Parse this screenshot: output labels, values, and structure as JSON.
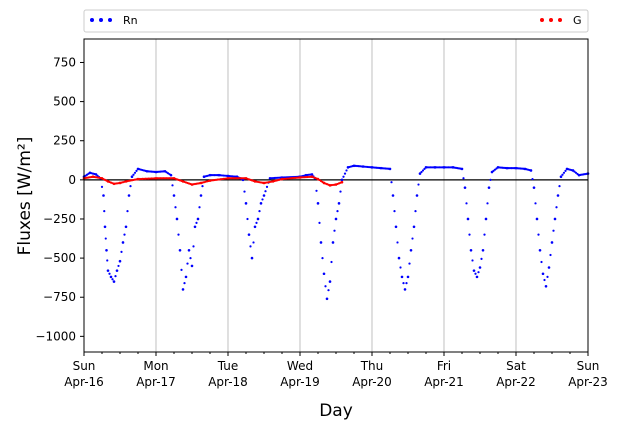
{
  "chart_data": {
    "type": "scatter",
    "xlabel": "Day",
    "ylabel": "Fluxes [W/m²]",
    "x_range": [
      "2017-04-16",
      "2017-04-23"
    ],
    "ylim": [
      -1100,
      900
    ],
    "y_ticks": [
      -1000,
      -750,
      -500,
      -250,
      0,
      250,
      500,
      750
    ],
    "x_ticks": [
      {
        "date": "2017-04-16",
        "day": "Sun",
        "date_label": "Apr-16"
      },
      {
        "date": "2017-04-17",
        "day": "Mon",
        "date_label": "Apr-17"
      },
      {
        "date": "2017-04-18",
        "day": "Tue",
        "date_label": "Apr-18"
      },
      {
        "date": "2017-04-19",
        "day": "Wed",
        "date_label": "Apr-19"
      },
      {
        "date": "2017-04-20",
        "day": "Thu",
        "date_label": "Apr-20"
      },
      {
        "date": "2017-04-21",
        "day": "Fri",
        "date_label": "Apr-21"
      },
      {
        "date": "2017-04-22",
        "day": "Sat",
        "date_label": "Apr-22"
      },
      {
        "date": "2017-04-23",
        "day": "Sun",
        "date_label": "Apr-23"
      }
    ],
    "grid": "vertical",
    "zero_line": true,
    "legend_placement": "top, above plot",
    "series": [
      {
        "name": "Rn",
        "color": "#0000ff",
        "points": [
          [
            "2017-04-16 00:00",
            20
          ],
          [
            "2017-04-16 02:00",
            45
          ],
          [
            "2017-04-16 04:00",
            35
          ],
          [
            "2017-04-16 05:30",
            10
          ],
          [
            "2017-04-16 06:30",
            -100
          ],
          [
            "2017-04-16 07:00",
            -300
          ],
          [
            "2017-04-16 07:30",
            -450
          ],
          [
            "2017-04-16 08:00",
            -580
          ],
          [
            "2017-04-16 09:00",
            -620
          ],
          [
            "2017-04-16 10:00",
            -650
          ],
          [
            "2017-04-16 11:00",
            -580
          ],
          [
            "2017-04-16 12:00",
            -520
          ],
          [
            "2017-04-16 13:00",
            -400
          ],
          [
            "2017-04-16 14:00",
            -300
          ],
          [
            "2017-04-16 15:00",
            -100
          ],
          [
            "2017-04-16 16:00",
            20
          ],
          [
            "2017-04-16 18:00",
            70
          ],
          [
            "2017-04-16 21:00",
            55
          ],
          [
            "2017-04-17 00:00",
            50
          ],
          [
            "2017-04-17 03:00",
            55
          ],
          [
            "2017-04-17 05:00",
            30
          ],
          [
            "2017-04-17 06:00",
            -100
          ],
          [
            "2017-04-17 07:00",
            -250
          ],
          [
            "2017-04-17 08:00",
            -450
          ],
          [
            "2017-04-17 09:00",
            -700
          ],
          [
            "2017-04-17 10:00",
            -620
          ],
          [
            "2017-04-17 11:00",
            -450
          ],
          [
            "2017-04-17 12:00",
            -550
          ],
          [
            "2017-04-17 13:00",
            -300
          ],
          [
            "2017-04-17 14:00",
            -250
          ],
          [
            "2017-04-17 15:00",
            -100
          ],
          [
            "2017-04-17 16:00",
            20
          ],
          [
            "2017-04-17 18:00",
            30
          ],
          [
            "2017-04-17 21:00",
            30
          ],
          [
            "2017-04-18 00:00",
            25
          ],
          [
            "2017-04-18 03:00",
            20
          ],
          [
            "2017-04-18 04:00",
            10
          ],
          [
            "2017-04-18 05:00",
            0
          ],
          [
            "2017-04-18 06:00",
            -150
          ],
          [
            "2017-04-18 07:00",
            -350
          ],
          [
            "2017-04-18 08:00",
            -500
          ],
          [
            "2017-04-18 09:00",
            -300
          ],
          [
            "2017-04-18 10:00",
            -250
          ],
          [
            "2017-04-18 11:00",
            -150
          ],
          [
            "2017-04-18 12:00",
            -100
          ],
          [
            "2017-04-18 14:00",
            10
          ],
          [
            "2017-04-18 18:00",
            15
          ],
          [
            "2017-04-19 00:00",
            20
          ],
          [
            "2017-04-19 02:00",
            30
          ],
          [
            "2017-04-19 04:00",
            35
          ],
          [
            "2017-04-19 05:00",
            10
          ],
          [
            "2017-04-19 06:00",
            -150
          ],
          [
            "2017-04-19 07:00",
            -400
          ],
          [
            "2017-04-19 08:00",
            -600
          ],
          [
            "2017-04-19 09:00",
            -760
          ],
          [
            "2017-04-19 10:00",
            -650
          ],
          [
            "2017-04-19 11:00",
            -400
          ],
          [
            "2017-04-19 12:00",
            -250
          ],
          [
            "2017-04-19 13:00",
            -150
          ],
          [
            "2017-04-19 14:00",
            0
          ],
          [
            "2017-04-19 16:00",
            80
          ],
          [
            "2017-04-19 18:00",
            90
          ],
          [
            "2017-04-19 21:00",
            85
          ],
          [
            "2017-04-20 00:00",
            80
          ],
          [
            "2017-04-20 03:00",
            75
          ],
          [
            "2017-04-20 06:00",
            70
          ],
          [
            "2017-04-20 07:00",
            -100
          ],
          [
            "2017-04-20 08:00",
            -300
          ],
          [
            "2017-04-20 09:00",
            -500
          ],
          [
            "2017-04-20 10:00",
            -620
          ],
          [
            "2017-04-20 11:00",
            -700
          ],
          [
            "2017-04-20 12:00",
            -620
          ],
          [
            "2017-04-20 13:00",
            -450
          ],
          [
            "2017-04-20 14:00",
            -300
          ],
          [
            "2017-04-20 15:00",
            -100
          ],
          [
            "2017-04-20 16:00",
            40
          ],
          [
            "2017-04-20 18:00",
            80
          ],
          [
            "2017-04-20 21:00",
            80
          ],
          [
            "2017-04-21 00:00",
            80
          ],
          [
            "2017-04-21 03:00",
            80
          ],
          [
            "2017-04-21 06:00",
            70
          ],
          [
            "2017-04-21 07:00",
            -50
          ],
          [
            "2017-04-21 08:00",
            -250
          ],
          [
            "2017-04-21 09:00",
            -450
          ],
          [
            "2017-04-21 10:00",
            -580
          ],
          [
            "2017-04-21 11:00",
            -620
          ],
          [
            "2017-04-21 12:00",
            -560
          ],
          [
            "2017-04-21 13:00",
            -450
          ],
          [
            "2017-04-21 14:00",
            -250
          ],
          [
            "2017-04-21 15:00",
            -50
          ],
          [
            "2017-04-21 16:00",
            50
          ],
          [
            "2017-04-21 18:00",
            80
          ],
          [
            "2017-04-21 21:00",
            75
          ],
          [
            "2017-04-22 00:00",
            75
          ],
          [
            "2017-04-22 03:00",
            70
          ],
          [
            "2017-04-22 05:00",
            60
          ],
          [
            "2017-04-22 06:00",
            -50
          ],
          [
            "2017-04-22 07:00",
            -250
          ],
          [
            "2017-04-22 08:00",
            -450
          ],
          [
            "2017-04-22 09:00",
            -600
          ],
          [
            "2017-04-22 10:00",
            -680
          ],
          [
            "2017-04-22 11:00",
            -560
          ],
          [
            "2017-04-22 12:00",
            -400
          ],
          [
            "2017-04-22 13:00",
            -250
          ],
          [
            "2017-04-22 14:00",
            -100
          ],
          [
            "2017-04-22 15:00",
            20
          ],
          [
            "2017-04-22 17:00",
            70
          ],
          [
            "2017-04-22 19:00",
            60
          ],
          [
            "2017-04-22 21:00",
            30
          ],
          [
            "2017-04-23 00:00",
            40
          ]
        ]
      },
      {
        "name": "G",
        "color": "#ff0000",
        "points": [
          [
            "2017-04-16 00:00",
            10
          ],
          [
            "2017-04-16 03:00",
            20
          ],
          [
            "2017-04-16 06:00",
            10
          ],
          [
            "2017-04-16 08:00",
            -10
          ],
          [
            "2017-04-16 10:00",
            -25
          ],
          [
            "2017-04-16 12:00",
            -20
          ],
          [
            "2017-04-16 14:00",
            -10
          ],
          [
            "2017-04-16 18:00",
            5
          ],
          [
            "2017-04-17 00:00",
            10
          ],
          [
            "2017-04-17 06:00",
            10
          ],
          [
            "2017-04-17 09:00",
            -10
          ],
          [
            "2017-04-17 12:00",
            -30
          ],
          [
            "2017-04-17 15:00",
            -20
          ],
          [
            "2017-04-17 18:00",
            -5
          ],
          [
            "2017-04-18 00:00",
            10
          ],
          [
            "2017-04-18 06:00",
            10
          ],
          [
            "2017-04-18 09:00",
            -10
          ],
          [
            "2017-04-18 12:00",
            -20
          ],
          [
            "2017-04-18 15:00",
            -10
          ],
          [
            "2017-04-18 18:00",
            5
          ],
          [
            "2017-04-19 00:00",
            15
          ],
          [
            "2017-04-19 04:00",
            20
          ],
          [
            "2017-04-19 06:00",
            5
          ],
          [
            "2017-04-19 08:00",
            -20
          ],
          [
            "2017-04-19 10:00",
            -35
          ],
          [
            "2017-04-19 12:00",
            -30
          ],
          [
            "2017-04-19 14:00",
            -15
          ]
        ]
      }
    ]
  }
}
